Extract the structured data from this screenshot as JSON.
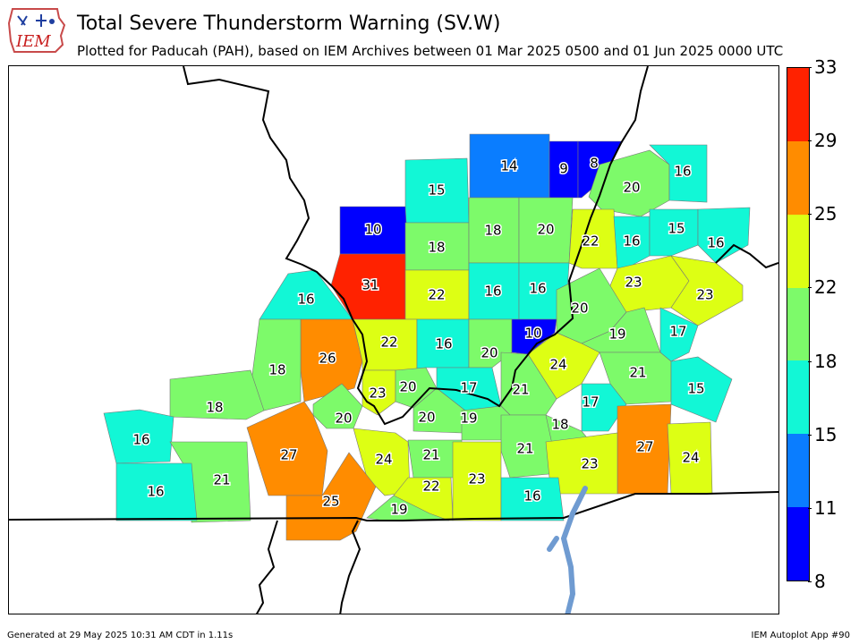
{
  "header": {
    "logo_text": "IEM",
    "title": "Total Severe Thunderstorm Warning (SV.W)",
    "subtitle": "Plotted for Paducah (PAH), based on IEM Archives  between 01 Mar 2025 0500 and 01 Jun 2025 0000 UTC"
  },
  "colorbar": {
    "ticks": [
      "33",
      "29",
      "25",
      "22",
      "18",
      "15",
      "11",
      "8"
    ],
    "colors": [
      "#ff2200",
      "#ff8c00",
      "#ddff14",
      "#7dfa6a",
      "#12f7d6",
      "#0a7dff",
      "#0000ff"
    ]
  },
  "counties": [
    {
      "value": "15"
    },
    {
      "value": "14"
    },
    {
      "value": "9"
    },
    {
      "value": "8"
    },
    {
      "value": "20"
    },
    {
      "value": "16"
    },
    {
      "value": "10"
    },
    {
      "value": "18"
    },
    {
      "value": "18"
    },
    {
      "value": "20"
    },
    {
      "value": "22"
    },
    {
      "value": "16"
    },
    {
      "value": "15"
    },
    {
      "value": "16"
    },
    {
      "value": "16"
    },
    {
      "value": "31"
    },
    {
      "value": "22"
    },
    {
      "value": "16"
    },
    {
      "value": "16"
    },
    {
      "value": "23"
    },
    {
      "value": "23"
    },
    {
      "value": "20"
    },
    {
      "value": "26"
    },
    {
      "value": "22"
    },
    {
      "value": "16"
    },
    {
      "value": "20"
    },
    {
      "value": "10"
    },
    {
      "value": "19"
    },
    {
      "value": "17"
    },
    {
      "value": "18"
    },
    {
      "value": "24"
    },
    {
      "value": "21"
    },
    {
      "value": "23"
    },
    {
      "value": "20"
    },
    {
      "value": "17"
    },
    {
      "value": "21"
    },
    {
      "value": "15"
    },
    {
      "value": "18"
    },
    {
      "value": "20"
    },
    {
      "value": "20"
    },
    {
      "value": "19"
    },
    {
      "value": "17"
    },
    {
      "value": "16"
    },
    {
      "value": "27"
    },
    {
      "value": "18"
    },
    {
      "value": "24"
    },
    {
      "value": "21"
    },
    {
      "value": "21"
    },
    {
      "value": "27"
    },
    {
      "value": "21"
    },
    {
      "value": "23"
    },
    {
      "value": "24"
    },
    {
      "value": "16"
    },
    {
      "value": "22"
    },
    {
      "value": "23"
    },
    {
      "value": "16"
    },
    {
      "value": "25"
    },
    {
      "value": "19"
    }
  ],
  "footer": {
    "left": "Generated at 29 May 2025 10:31 AM CDT in 1.11s",
    "right": "IEM Autoplot App #90"
  }
}
